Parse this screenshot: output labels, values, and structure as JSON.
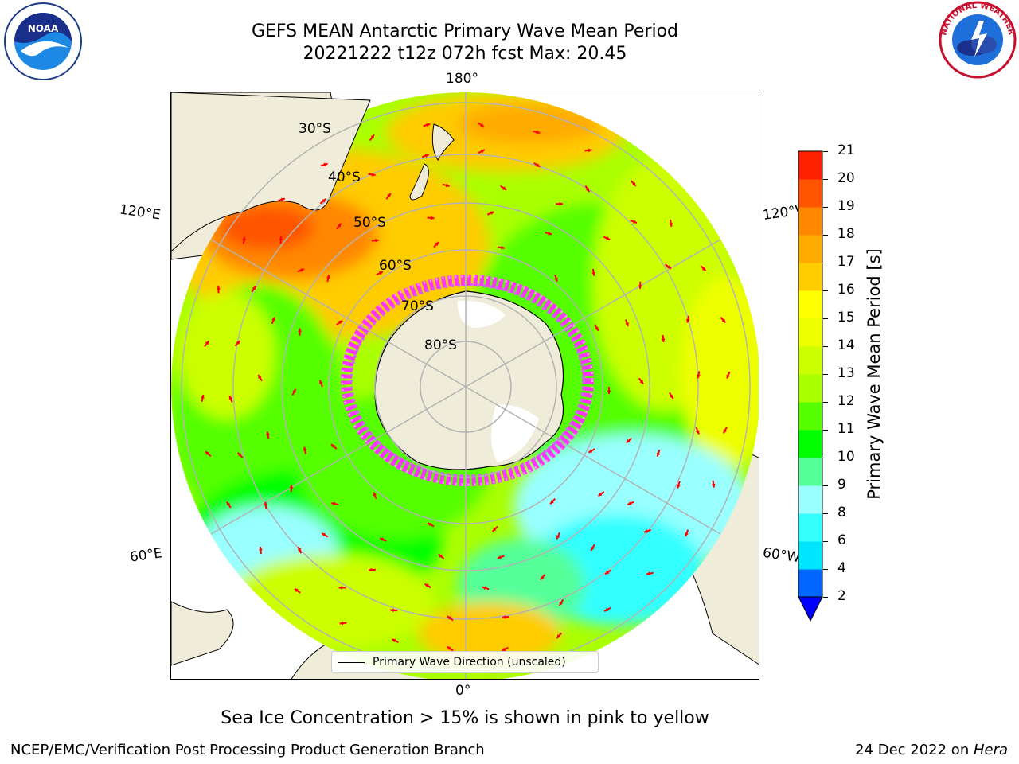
{
  "title": {
    "line1": "GEFS MEAN Antarctic Primary Wave Mean Period",
    "line2": "20221222 t12z 072h fcst   Max: 20.45"
  },
  "logos": {
    "left": {
      "icon": "noaa-logo",
      "text": "NOAA"
    },
    "right": {
      "icon": "national-weather-service-logo",
      "text": "NATIONAL WEATHER SERVICE"
    }
  },
  "map": {
    "projection": "south-polar-stereographic",
    "center": "South Pole",
    "lon_labels": {
      "top": "180°",
      "bottom": "0°",
      "left_upper": "120°E",
      "left_lower": "60°E",
      "right_upper": "120°W",
      "right_lower": "60°W"
    },
    "lat_labels": [
      "30°S",
      "40°S",
      "50°S",
      "60°S",
      "70°S",
      "80°S"
    ],
    "colors": {
      "land": "#efedd9",
      "ice": "#ff33ff",
      "arrow": "#ff0000",
      "grid": "#b3b3b3"
    }
  },
  "legend": {
    "label": "Primary Wave Direction (unscaled)"
  },
  "colorbar": {
    "label": "Primary Wave Mean Period [s]",
    "ticks": [
      "2",
      "4",
      "6",
      "8",
      "9",
      "10",
      "11",
      "12",
      "13",
      "14",
      "15",
      "16",
      "17",
      "18",
      "19",
      "20",
      "21"
    ],
    "colors": [
      "#0066ff",
      "#00e5ff",
      "#33ffff",
      "#99ffff",
      "#55ff99",
      "#00ff00",
      "#55ff00",
      "#aaff00",
      "#ccff00",
      "#eeff00",
      "#ffff00",
      "#ffcc00",
      "#ffaa00",
      "#ff8800",
      "#ff5500",
      "#ff2200"
    ],
    "extend_color": "#0000ff"
  },
  "subtitle": "Sea Ice Concentration > 15% is shown in pink to yellow",
  "footer": {
    "left": "NCEP/EMC/Verification Post Processing Product Generation Branch",
    "date": "24 Dec 2022 on ",
    "host": "Hera"
  }
}
